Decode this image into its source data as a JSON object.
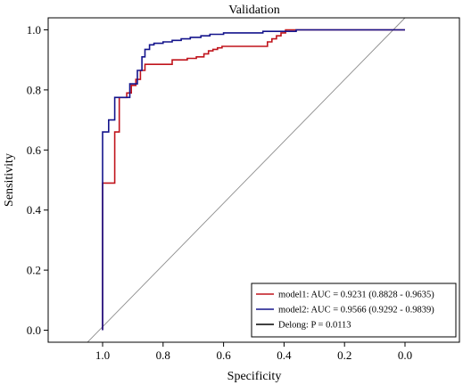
{
  "chart_data": {
    "type": "line",
    "title": "Validation",
    "xlabel": "Specificity",
    "ylabel": "Sensitivity",
    "xlim": [
      1.18,
      -0.18
    ],
    "ylim": [
      -0.04,
      1.04
    ],
    "x_reversed": true,
    "x_ticks": [
      1.0,
      0.8,
      0.6,
      0.4,
      0.2,
      0.0
    ],
    "x_tick_labels": [
      "1.0",
      "0.8",
      "0.6",
      "0.4",
      "0.2",
      "0.0"
    ],
    "y_ticks": [
      0.0,
      0.2,
      0.4,
      0.6,
      0.8,
      1.0
    ],
    "y_tick_labels": [
      "0.0",
      "0.2",
      "0.4",
      "0.6",
      "0.8",
      "1.0"
    ],
    "grid": false,
    "legend_position": "bottom-right",
    "reference_line": {
      "x": [
        1.05,
        0.0
      ],
      "y": [
        -0.04,
        1.04
      ],
      "color": "#8c8c8c"
    },
    "series": [
      {
        "name": "model1",
        "legend_label": "model1: AUC = 0.9231 (0.8828 - 0.9635)",
        "color": "#c0141c",
        "x": [
          1.0,
          1.0,
          0.96,
          0.96,
          0.945,
          0.945,
          0.92,
          0.92,
          0.905,
          0.905,
          0.89,
          0.89,
          0.875,
          0.875,
          0.86,
          0.86,
          0.79,
          0.79,
          0.77,
          0.77,
          0.72,
          0.72,
          0.69,
          0.69,
          0.665,
          0.665,
          0.65,
          0.65,
          0.635,
          0.635,
          0.62,
          0.62,
          0.605,
          0.605,
          0.54,
          0.54,
          0.515,
          0.515,
          0.49,
          0.49,
          0.47,
          0.47,
          0.455,
          0.455,
          0.44,
          0.44,
          0.425,
          0.425,
          0.41,
          0.41,
          0.395,
          0.395,
          0.38,
          0.38,
          0.0
        ],
        "y": [
          0.0,
          0.49,
          0.49,
          0.66,
          0.66,
          0.775,
          0.775,
          0.79,
          0.79,
          0.815,
          0.815,
          0.835,
          0.835,
          0.865,
          0.865,
          0.885,
          0.885,
          0.885,
          0.885,
          0.9,
          0.9,
          0.905,
          0.905,
          0.91,
          0.91,
          0.92,
          0.92,
          0.93,
          0.93,
          0.935,
          0.935,
          0.94,
          0.94,
          0.945,
          0.945,
          0.945,
          0.945,
          0.945,
          0.945,
          0.945,
          0.945,
          0.945,
          0.945,
          0.96,
          0.96,
          0.97,
          0.97,
          0.98,
          0.98,
          0.99,
          0.99,
          1.0,
          1.0,
          1.0,
          1.0
        ]
      },
      {
        "name": "model2",
        "legend_label": "model2: AUC = 0.9566 (0.9292 - 0.9839)",
        "color": "#14148c",
        "x": [
          1.0,
          1.0,
          0.98,
          0.98,
          0.96,
          0.96,
          0.91,
          0.91,
          0.885,
          0.885,
          0.87,
          0.87,
          0.86,
          0.86,
          0.845,
          0.845,
          0.83,
          0.83,
          0.8,
          0.8,
          0.77,
          0.77,
          0.74,
          0.74,
          0.71,
          0.71,
          0.675,
          0.675,
          0.645,
          0.645,
          0.6,
          0.6,
          0.47,
          0.47,
          0.36,
          0.36,
          0.0
        ],
        "y": [
          0.0,
          0.66,
          0.66,
          0.7,
          0.7,
          0.775,
          0.775,
          0.82,
          0.82,
          0.865,
          0.865,
          0.91,
          0.91,
          0.935,
          0.935,
          0.95,
          0.95,
          0.955,
          0.955,
          0.96,
          0.96,
          0.965,
          0.965,
          0.97,
          0.97,
          0.975,
          0.975,
          0.98,
          0.98,
          0.985,
          0.985,
          0.99,
          0.99,
          0.995,
          0.995,
          1.0,
          1.0
        ]
      }
    ],
    "legend_entries": [
      {
        "label": "model1: AUC = 0.9231 (0.8828 - 0.9635)",
        "color": "#c0141c"
      },
      {
        "label": "model2: AUC = 0.9566 (0.9292 - 0.9839)",
        "color": "#14148c"
      },
      {
        "label": "Delong: P = 0.0113",
        "color": "#000000"
      }
    ]
  }
}
